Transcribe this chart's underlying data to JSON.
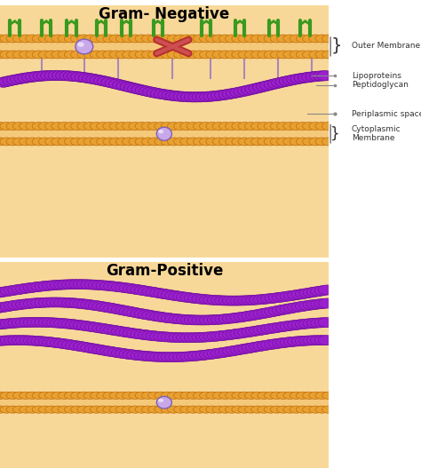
{
  "title_neg": "Gram- Negative",
  "title_pos": "Gram-Positive",
  "bg_color": "#ffffff",
  "membrane_bg": "#F5C97A",
  "membrane_fill": "#F0B860",
  "bead_color": "#E8A030",
  "bead_edge": "#C07010",
  "peptido_color": "#9B20CC",
  "peptido_edge": "#6B0A9A",
  "peptido_light": "#D090E8",
  "green_color": "#3A9A20",
  "protein_fill": "#C8A8E8",
  "protein_edge": "#8060B0",
  "red_cross": "#B83030",
  "red_cross_light": "#CC5050",
  "label_outer": "Outer Membrane",
  "label_lipo": "Lipoproteins",
  "label_pep": "Peptidoglycan",
  "label_peri": "Periplasmic space",
  "label_cyto": "Cytoplasmic\nMembrane",
  "peach_fill": "#F8D898",
  "periplasm_fill": "#FAEAC8"
}
